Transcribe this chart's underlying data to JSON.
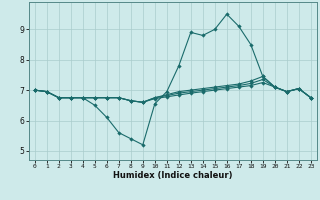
{
  "title": "",
  "xlabel": "Humidex (Indice chaleur)",
  "ylabel": "",
  "background_color": "#ceeaea",
  "grid_color": "#aacccc",
  "line_color": "#1a6b6b",
  "xlim": [
    -0.5,
    23.5
  ],
  "ylim": [
    4.7,
    9.9
  ],
  "xticks": [
    0,
    1,
    2,
    3,
    4,
    5,
    6,
    7,
    8,
    9,
    10,
    11,
    12,
    13,
    14,
    15,
    16,
    17,
    18,
    19,
    20,
    21,
    22,
    23
  ],
  "yticks": [
    5,
    6,
    7,
    8,
    9
  ],
  "line1": [
    7.0,
    6.95,
    6.75,
    6.75,
    6.75,
    6.5,
    6.1,
    5.6,
    5.4,
    5.2,
    6.55,
    6.95,
    7.8,
    8.9,
    8.8,
    9.0,
    9.5,
    9.1,
    8.5,
    7.45,
    7.1,
    6.95,
    7.05,
    6.75
  ],
  "line2": [
    7.0,
    6.95,
    6.75,
    6.75,
    6.75,
    6.75,
    6.75,
    6.75,
    6.65,
    6.6,
    6.75,
    6.85,
    6.95,
    7.0,
    7.05,
    7.1,
    7.15,
    7.2,
    7.3,
    7.45,
    7.1,
    6.95,
    7.05,
    6.75
  ],
  "line3": [
    7.0,
    6.95,
    6.75,
    6.75,
    6.75,
    6.75,
    6.75,
    6.75,
    6.65,
    6.6,
    6.75,
    6.82,
    6.9,
    6.95,
    7.0,
    7.05,
    7.1,
    7.15,
    7.22,
    7.35,
    7.1,
    6.95,
    7.05,
    6.75
  ],
  "line4": [
    7.0,
    6.95,
    6.75,
    6.75,
    6.75,
    6.75,
    6.75,
    6.75,
    6.65,
    6.6,
    6.72,
    6.78,
    6.84,
    6.9,
    6.95,
    7.0,
    7.05,
    7.1,
    7.15,
    7.25,
    7.1,
    6.95,
    7.05,
    6.75
  ]
}
